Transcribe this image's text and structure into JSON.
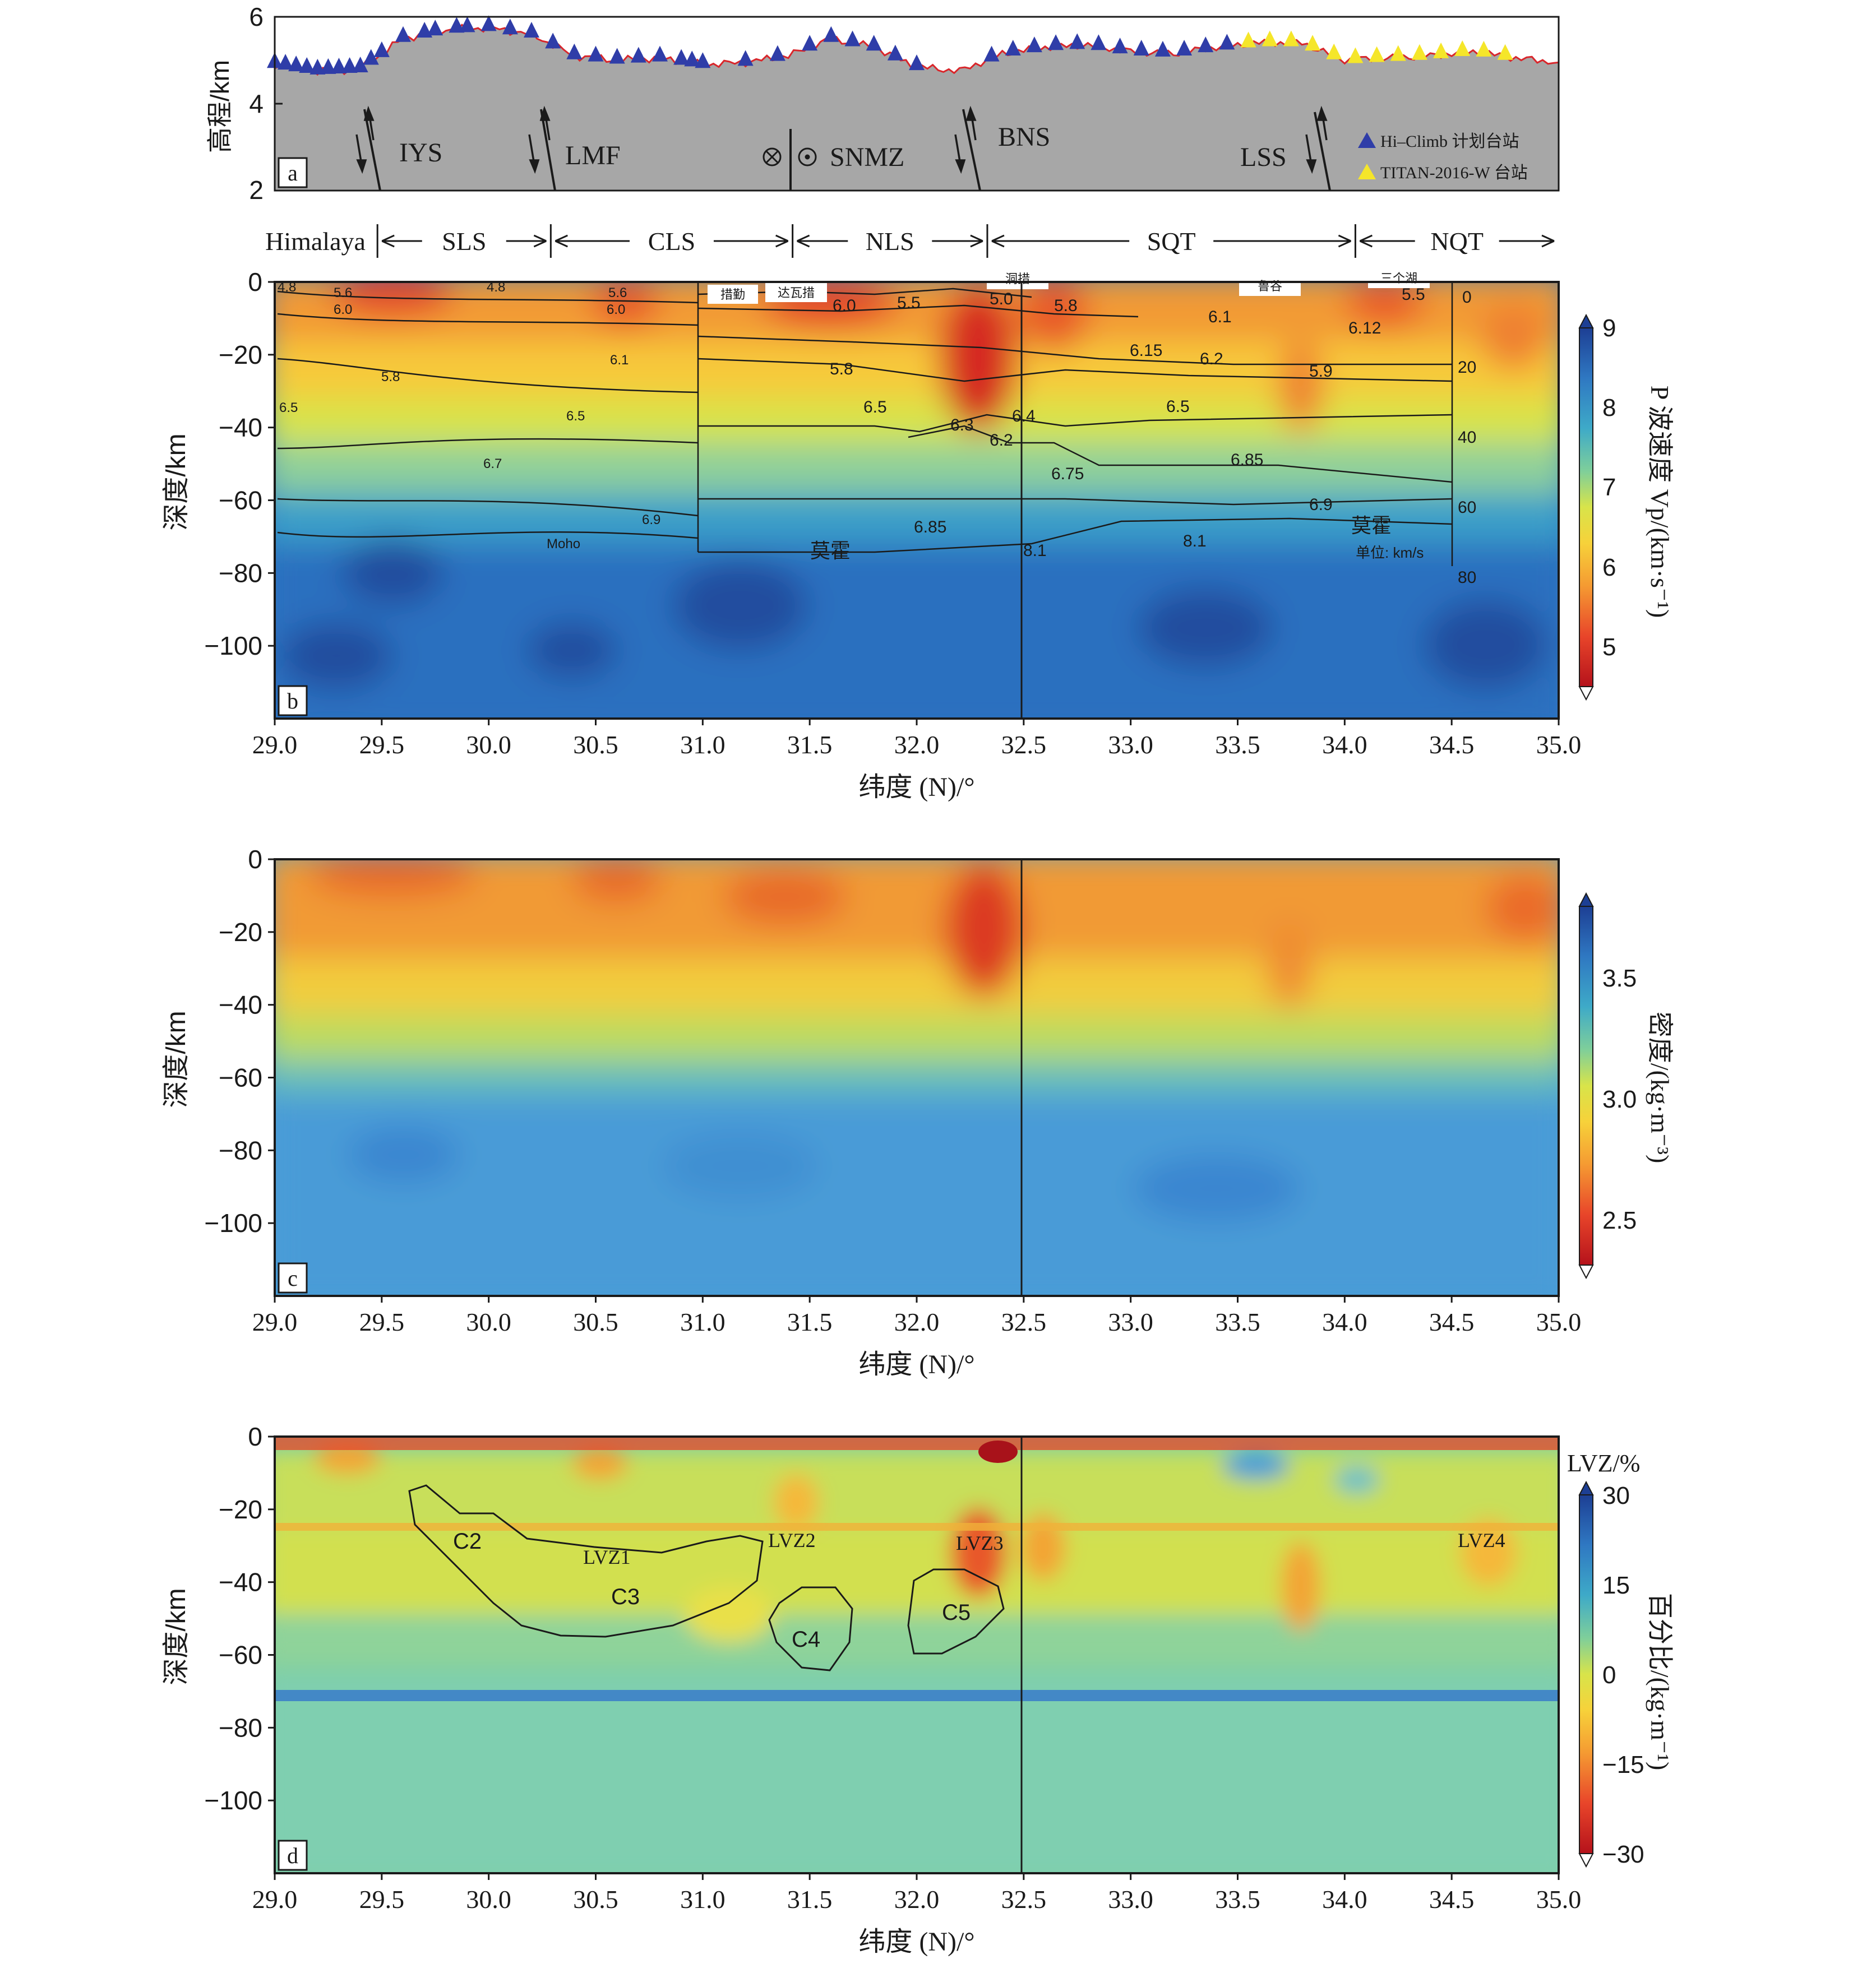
{
  "colors": {
    "terrain": "#a7a7a7",
    "elevation_line": "#d9262b",
    "hiclimb_triangle": "#2f3da8",
    "titan_triangle": "#f5e62a",
    "frame": "#1a1a1a"
  },
  "panel_a": {
    "panel_letter": "a",
    "ylabel": "高程/km",
    "yticks": [
      "6",
      "4",
      "2"
    ],
    "faults": [
      {
        "label": "IYS",
        "lat": 29.48,
        "kind": "arrows"
      },
      {
        "label": "LMF",
        "lat": 30.29,
        "kind": "arrows"
      },
      {
        "label": "SNMZ",
        "lat": 31.42,
        "kind": "out-in"
      },
      {
        "label": "BNS",
        "lat": 32.33,
        "kind": "arrows"
      },
      {
        "label": "LSS",
        "lat": 34.05,
        "kind": "arrows"
      }
    ],
    "legend": [
      {
        "label": "Hi–Climb 计划台站",
        "marker": "hiclimb_triangle"
      },
      {
        "label": "TITAN-2016-W 台站",
        "marker": "titan_triangle"
      }
    ]
  },
  "terranes": {
    "items": [
      {
        "label": "Himalaya",
        "from": 28.9,
        "to": 29.48
      },
      {
        "label": "SLS",
        "from": 29.48,
        "to": 30.29
      },
      {
        "label": "CLS",
        "from": 30.29,
        "to": 31.42
      },
      {
        "label": "NLS",
        "from": 31.42,
        "to": 32.33
      },
      {
        "label": "SQT",
        "from": 32.33,
        "to": 34.05
      },
      {
        "label": "NQT",
        "from": 34.05,
        "to": 35.0
      }
    ]
  },
  "panel_b": {
    "panel_letter": "b",
    "ylabel": "深度/km",
    "xlabel": "纬度 (N)/°",
    "colorbar_label": "P 波速度 Vp/(km·s⁻¹)",
    "colorbar_ticks": [
      "9",
      "8",
      "7",
      "6",
      "5"
    ],
    "velocity_labels": [
      "4.8",
      "5.6",
      "6.0",
      "4.8",
      "5.6",
      "6.0",
      "6.1",
      "5.8",
      "6.5",
      "6.5",
      "6.7",
      "6.9",
      "Moho",
      "6.0",
      "5.5",
      "5.0",
      "5.8",
      "6.1",
      "6.12",
      "6.15",
      "6.2",
      "5.9",
      "5.8",
      "6.5",
      "6.3",
      "6.4",
      "6.2",
      "6.5",
      "6.75",
      "6.85",
      "6.9",
      "6.85",
      "8.1",
      "8.1",
      "莫霍",
      "莫霍",
      "单位: km/s",
      "5.5"
    ],
    "lake_labels": [
      "措勤",
      "达瓦措",
      "洞措",
      "鲁谷",
      "三个湖"
    ],
    "depth_scale_ticks": [
      "0",
      "20",
      "40",
      "60",
      "80"
    ]
  },
  "panel_c": {
    "panel_letter": "c",
    "ylabel": "深度/km",
    "xlabel": "纬度 (N)/°",
    "colorbar_label": "密度/(kg·m⁻³)",
    "colorbar_ticks": [
      "3.5",
      "3.0",
      "2.5"
    ]
  },
  "panel_d": {
    "panel_letter": "d",
    "ylabel": "深度/km",
    "xlabel": "纬度 (N)/°",
    "colorbar_title": "LVZ/%",
    "colorbar_label": "百分比/(kg·m⁻¹)",
    "colorbar_ticks": [
      "30",
      "15",
      "0",
      "−15",
      "−30"
    ],
    "region_labels": [
      "C2",
      "LVZ1",
      "C3",
      "LVZ2",
      "C4",
      "LVZ3",
      "C5",
      "LVZ4"
    ]
  },
  "chart_data": [
    {
      "type": "area",
      "panel": "a",
      "ylabel": "高程/km",
      "ylim": [
        2,
        6
      ],
      "xlim": [
        29.0,
        35.0
      ],
      "x": [
        29.0,
        29.2,
        29.4,
        29.6,
        29.8,
        30.0,
        30.2,
        30.4,
        30.6,
        30.8,
        31.0,
        31.2,
        31.4,
        31.6,
        31.8,
        32.0,
        32.2,
        32.4,
        32.6,
        32.8,
        33.0,
        33.2,
        33.4,
        33.6,
        33.8,
        34.0,
        34.2,
        34.4,
        34.6,
        34.8,
        35.0
      ],
      "series": [
        {
          "y": [
            4.9,
            4.75,
            4.8,
            5.5,
            5.7,
            5.75,
            5.6,
            5.1,
            5.0,
            5.05,
            4.9,
            4.95,
            5.1,
            5.5,
            5.3,
            4.85,
            4.75,
            5.15,
            5.3,
            5.35,
            5.2,
            5.15,
            5.3,
            5.4,
            5.4,
            5.0,
            5.05,
            5.1,
            5.2,
            5.05,
            4.95
          ]
        }
      ],
      "stations_hiclimb_lat": [
        29.0,
        29.05,
        29.1,
        29.15,
        29.2,
        29.25,
        29.3,
        29.35,
        29.4,
        29.45,
        29.5,
        29.6,
        29.7,
        29.75,
        29.85,
        29.9,
        30.0,
        30.1,
        30.2,
        30.3,
        30.4,
        30.5,
        30.6,
        30.7,
        30.8,
        30.9,
        30.95,
        31.0,
        31.2,
        31.35,
        31.5,
        31.6,
        31.7,
        31.8,
        31.9,
        32.0,
        32.35,
        32.45,
        32.55,
        32.65,
        32.75,
        32.85,
        32.95,
        33.05,
        33.15,
        33.25,
        33.35,
        33.45
      ],
      "stations_titan_lat": [
        33.55,
        33.65,
        33.75,
        33.85,
        33.95,
        34.05,
        34.15,
        34.25,
        34.35,
        34.45,
        34.55,
        34.65,
        34.75
      ]
    },
    {
      "type": "heatmap",
      "panel": "b",
      "title": "",
      "xlabel": "纬度 (N)/°",
      "ylabel": "深度/km",
      "xlim": [
        29.0,
        35.0
      ],
      "ylim": [
        -120,
        0
      ],
      "x_ticks": [
        29.0,
        29.5,
        30.0,
        30.5,
        31.0,
        31.5,
        32.0,
        32.5,
        33.0,
        33.5,
        34.0,
        34.5,
        35.0
      ],
      "y_ticks": [
        0,
        -20,
        -40,
        -60,
        -80,
        -100
      ],
      "value_label": "P 波速度 Vp/(km·s⁻¹)",
      "value_range": [
        4.5,
        9.0
      ],
      "contour_levels": [
        5.0,
        5.5,
        6.0,
        6.5,
        7.0,
        7.5,
        8.0,
        8.5
      ]
    },
    {
      "type": "heatmap",
      "panel": "c",
      "xlabel": "纬度 (N)/°",
      "ylabel": "深度/km",
      "xlim": [
        29.0,
        35.0
      ],
      "ylim": [
        -120,
        0
      ],
      "x_ticks": [
        29.0,
        29.5,
        30.0,
        30.5,
        31.0,
        31.5,
        32.0,
        32.5,
        33.0,
        33.5,
        34.0,
        34.5,
        35.0
      ],
      "y_ticks": [
        0,
        -20,
        -40,
        -60,
        -80,
        -100
      ],
      "value_label": "密度/(kg·m⁻³)",
      "value_range": [
        2.3,
        3.8
      ]
    },
    {
      "type": "heatmap",
      "panel": "d",
      "xlabel": "纬度 (N)/°",
      "ylabel": "深度/km",
      "xlim": [
        29.0,
        35.0
      ],
      "ylim": [
        -120,
        0
      ],
      "x_ticks": [
        29.0,
        29.5,
        30.0,
        30.5,
        31.0,
        31.5,
        32.0,
        32.5,
        33.0,
        33.5,
        34.0,
        34.5,
        35.0
      ],
      "y_ticks": [
        0,
        -20,
        -40,
        -60,
        -80,
        -100
      ],
      "value_label": "百分比/(kg·m⁻¹)",
      "value_range": [
        -30,
        30
      ]
    }
  ]
}
